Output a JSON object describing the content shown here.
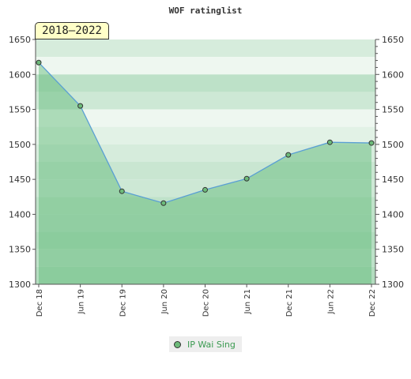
{
  "chart_data": {
    "type": "area",
    "title": "WOF ratinglist",
    "range_label": "2018–2022",
    "x_categories": [
      "Dec 18",
      "Jun 19",
      "Dec 19",
      "Jun 20",
      "Dec 20",
      "Jun 21",
      "Dec 21",
      "Jun 22",
      "Dec 22"
    ],
    "series": [
      {
        "name": "IP Wai Sing",
        "values": [
          1617,
          1555,
          1433,
          1416,
          1435,
          1451,
          1485,
          1503,
          1502
        ]
      }
    ],
    "y_ticks": [
      1300,
      1350,
      1400,
      1450,
      1500,
      1550,
      1600,
      1650
    ],
    "ylim": [
      1300,
      1650
    ],
    "colors": {
      "line": "#5a9fd4",
      "fill": "#5cb874",
      "band_dark": "#b3dcbf",
      "band_light": "#eef7f0"
    }
  }
}
